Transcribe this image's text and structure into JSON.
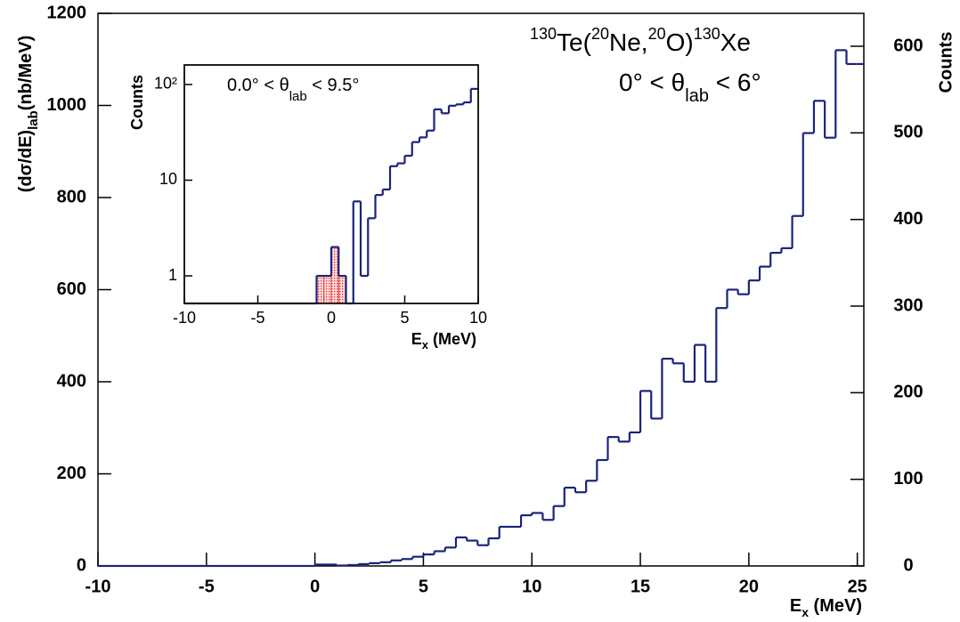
{
  "chart_data": [
    {
      "type": "histogram",
      "title_parts": [
        "130",
        "Te(",
        "20",
        "Ne,",
        "20",
        "O)",
        "130",
        "Xe"
      ],
      "annotation_parts": [
        "0° < θ",
        "lab",
        " < 6°"
      ],
      "x_label_parts": [
        "E",
        "x",
        " (MeV)"
      ],
      "y_label_parts": [
        "(dσ/dE)",
        "lab",
        "(nb/MeV)"
      ],
      "y2_label": "Counts",
      "bins": [
        -10,
        -9.5,
        -9,
        -8.5,
        -8,
        -7.5,
        -7,
        -6.5,
        -6,
        -5.5,
        -5,
        -4.5,
        -4,
        -3.5,
        -3,
        -2.5,
        -2,
        -1.5,
        -1,
        -0.5,
        0,
        0.5,
        1,
        1.5,
        2,
        2.5,
        3,
        3.5,
        4,
        4.5,
        5,
        5.5,
        6,
        6.5,
        7,
        7.5,
        8,
        8.5,
        9,
        9.5,
        10,
        10.5,
        11,
        11.5,
        12,
        12.5,
        13,
        13.5,
        14,
        14.5,
        15,
        15.5,
        16,
        16.5,
        17,
        17.5,
        18,
        18.5,
        19,
        19.5,
        20,
        20.5,
        21,
        21.5,
        22,
        22.5,
        23,
        23.5,
        24,
        24.5,
        25
      ],
      "values": [
        0,
        0,
        0,
        0,
        0,
        0,
        0,
        0,
        0,
        0,
        0,
        0,
        0,
        0,
        0,
        0,
        0,
        0,
        0,
        0,
        3,
        3,
        1,
        2,
        4,
        6,
        8,
        12,
        15,
        20,
        25,
        32,
        40,
        62,
        55,
        45,
        60,
        85,
        85,
        110,
        115,
        100,
        130,
        170,
        160,
        185,
        230,
        280,
        270,
        290,
        380,
        320,
        450,
        440,
        400,
        480,
        400,
        560,
        600,
        590,
        620,
        650,
        680,
        690,
        760,
        940,
        1010,
        930,
        1120,
        1090
      ],
      "color": "#1a237e",
      "xlim": [
        -10,
        25.3
      ],
      "xticks": [
        -10,
        -5,
        0,
        5,
        10,
        15,
        20,
        25
      ],
      "ylim": [
        0,
        1200
      ],
      "yticks": [
        0,
        200,
        400,
        600,
        800,
        1000,
        1200
      ],
      "y2lim": [
        0,
        638
      ],
      "y2ticks": [
        0,
        100,
        200,
        300,
        400,
        500,
        600
      ]
    },
    {
      "type": "histogram",
      "log_y": true,
      "annotation_parts": [
        "0.0° < θ",
        "lab",
        " < 9.5°"
      ],
      "x_label_parts": [
        "E",
        "x",
        " (MeV)"
      ],
      "y_label": "Counts",
      "bins": [
        -10,
        -9.5,
        -9,
        -8.5,
        -8,
        -7.5,
        -7,
        -6.5,
        -6,
        -5.5,
        -5,
        -4.5,
        -4,
        -3.5,
        -3,
        -2.5,
        -2,
        -1.5,
        -1,
        -0.5,
        0,
        0.5,
        1,
        1.5,
        2,
        2.5,
        3,
        3.5,
        4,
        4.5,
        5,
        5.5,
        6,
        6.5,
        7,
        7.5,
        8,
        8.5,
        9,
        9.5,
        10
      ],
      "values": [
        0,
        0,
        0,
        0,
        0,
        0,
        0,
        0,
        0,
        0,
        0,
        0,
        0,
        0,
        0,
        0,
        0,
        0,
        1,
        1,
        2,
        1,
        0,
        6,
        1,
        4,
        7,
        8,
        14,
        15,
        18,
        25,
        28,
        33,
        55,
        50,
        60,
        62,
        65,
        90
      ],
      "color": "#1a237e",
      "fill_color": "#e53935",
      "fill_xlim": [
        -1,
        1
      ],
      "xlim": [
        -10,
        10
      ],
      "xticks": [
        -10,
        -5,
        0,
        5,
        10
      ],
      "ylim": [
        0.515,
        160
      ],
      "yticks": [
        1,
        10,
        {
          "value": 100,
          "label": "10²"
        }
      ]
    }
  ]
}
